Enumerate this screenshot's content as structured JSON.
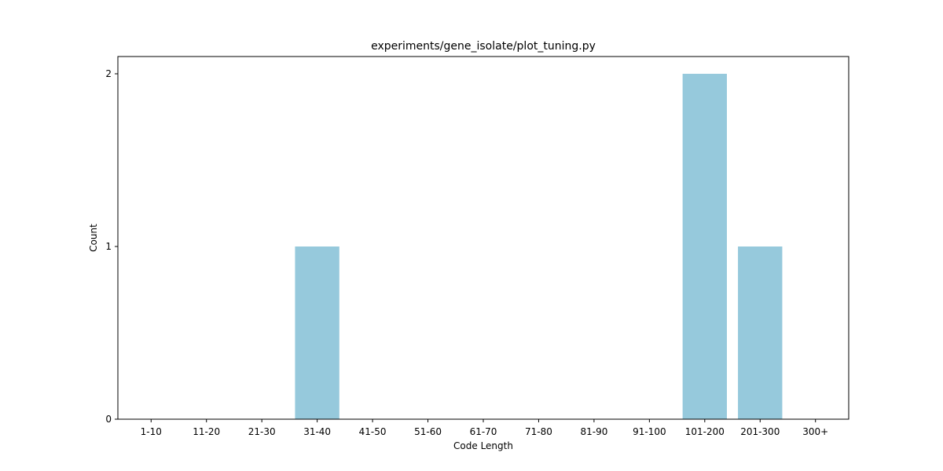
{
  "chart_data": {
    "type": "bar",
    "title": "experiments/gene_isolate/plot_tuning.py",
    "xlabel": "Code Length",
    "ylabel": "Count",
    "categories": [
      "1-10",
      "11-20",
      "21-30",
      "31-40",
      "41-50",
      "51-60",
      "61-70",
      "71-80",
      "81-90",
      "91-100",
      "101-200",
      "201-300",
      "300+"
    ],
    "values": [
      0,
      0,
      0,
      1,
      0,
      0,
      0,
      0,
      0,
      0,
      2,
      1,
      0
    ],
    "ylim": [
      0,
      2.1
    ],
    "yticks": [
      "0",
      "1",
      "2"
    ],
    "bar_color": "#96c9dc",
    "grid": false,
    "legend": "none"
  }
}
